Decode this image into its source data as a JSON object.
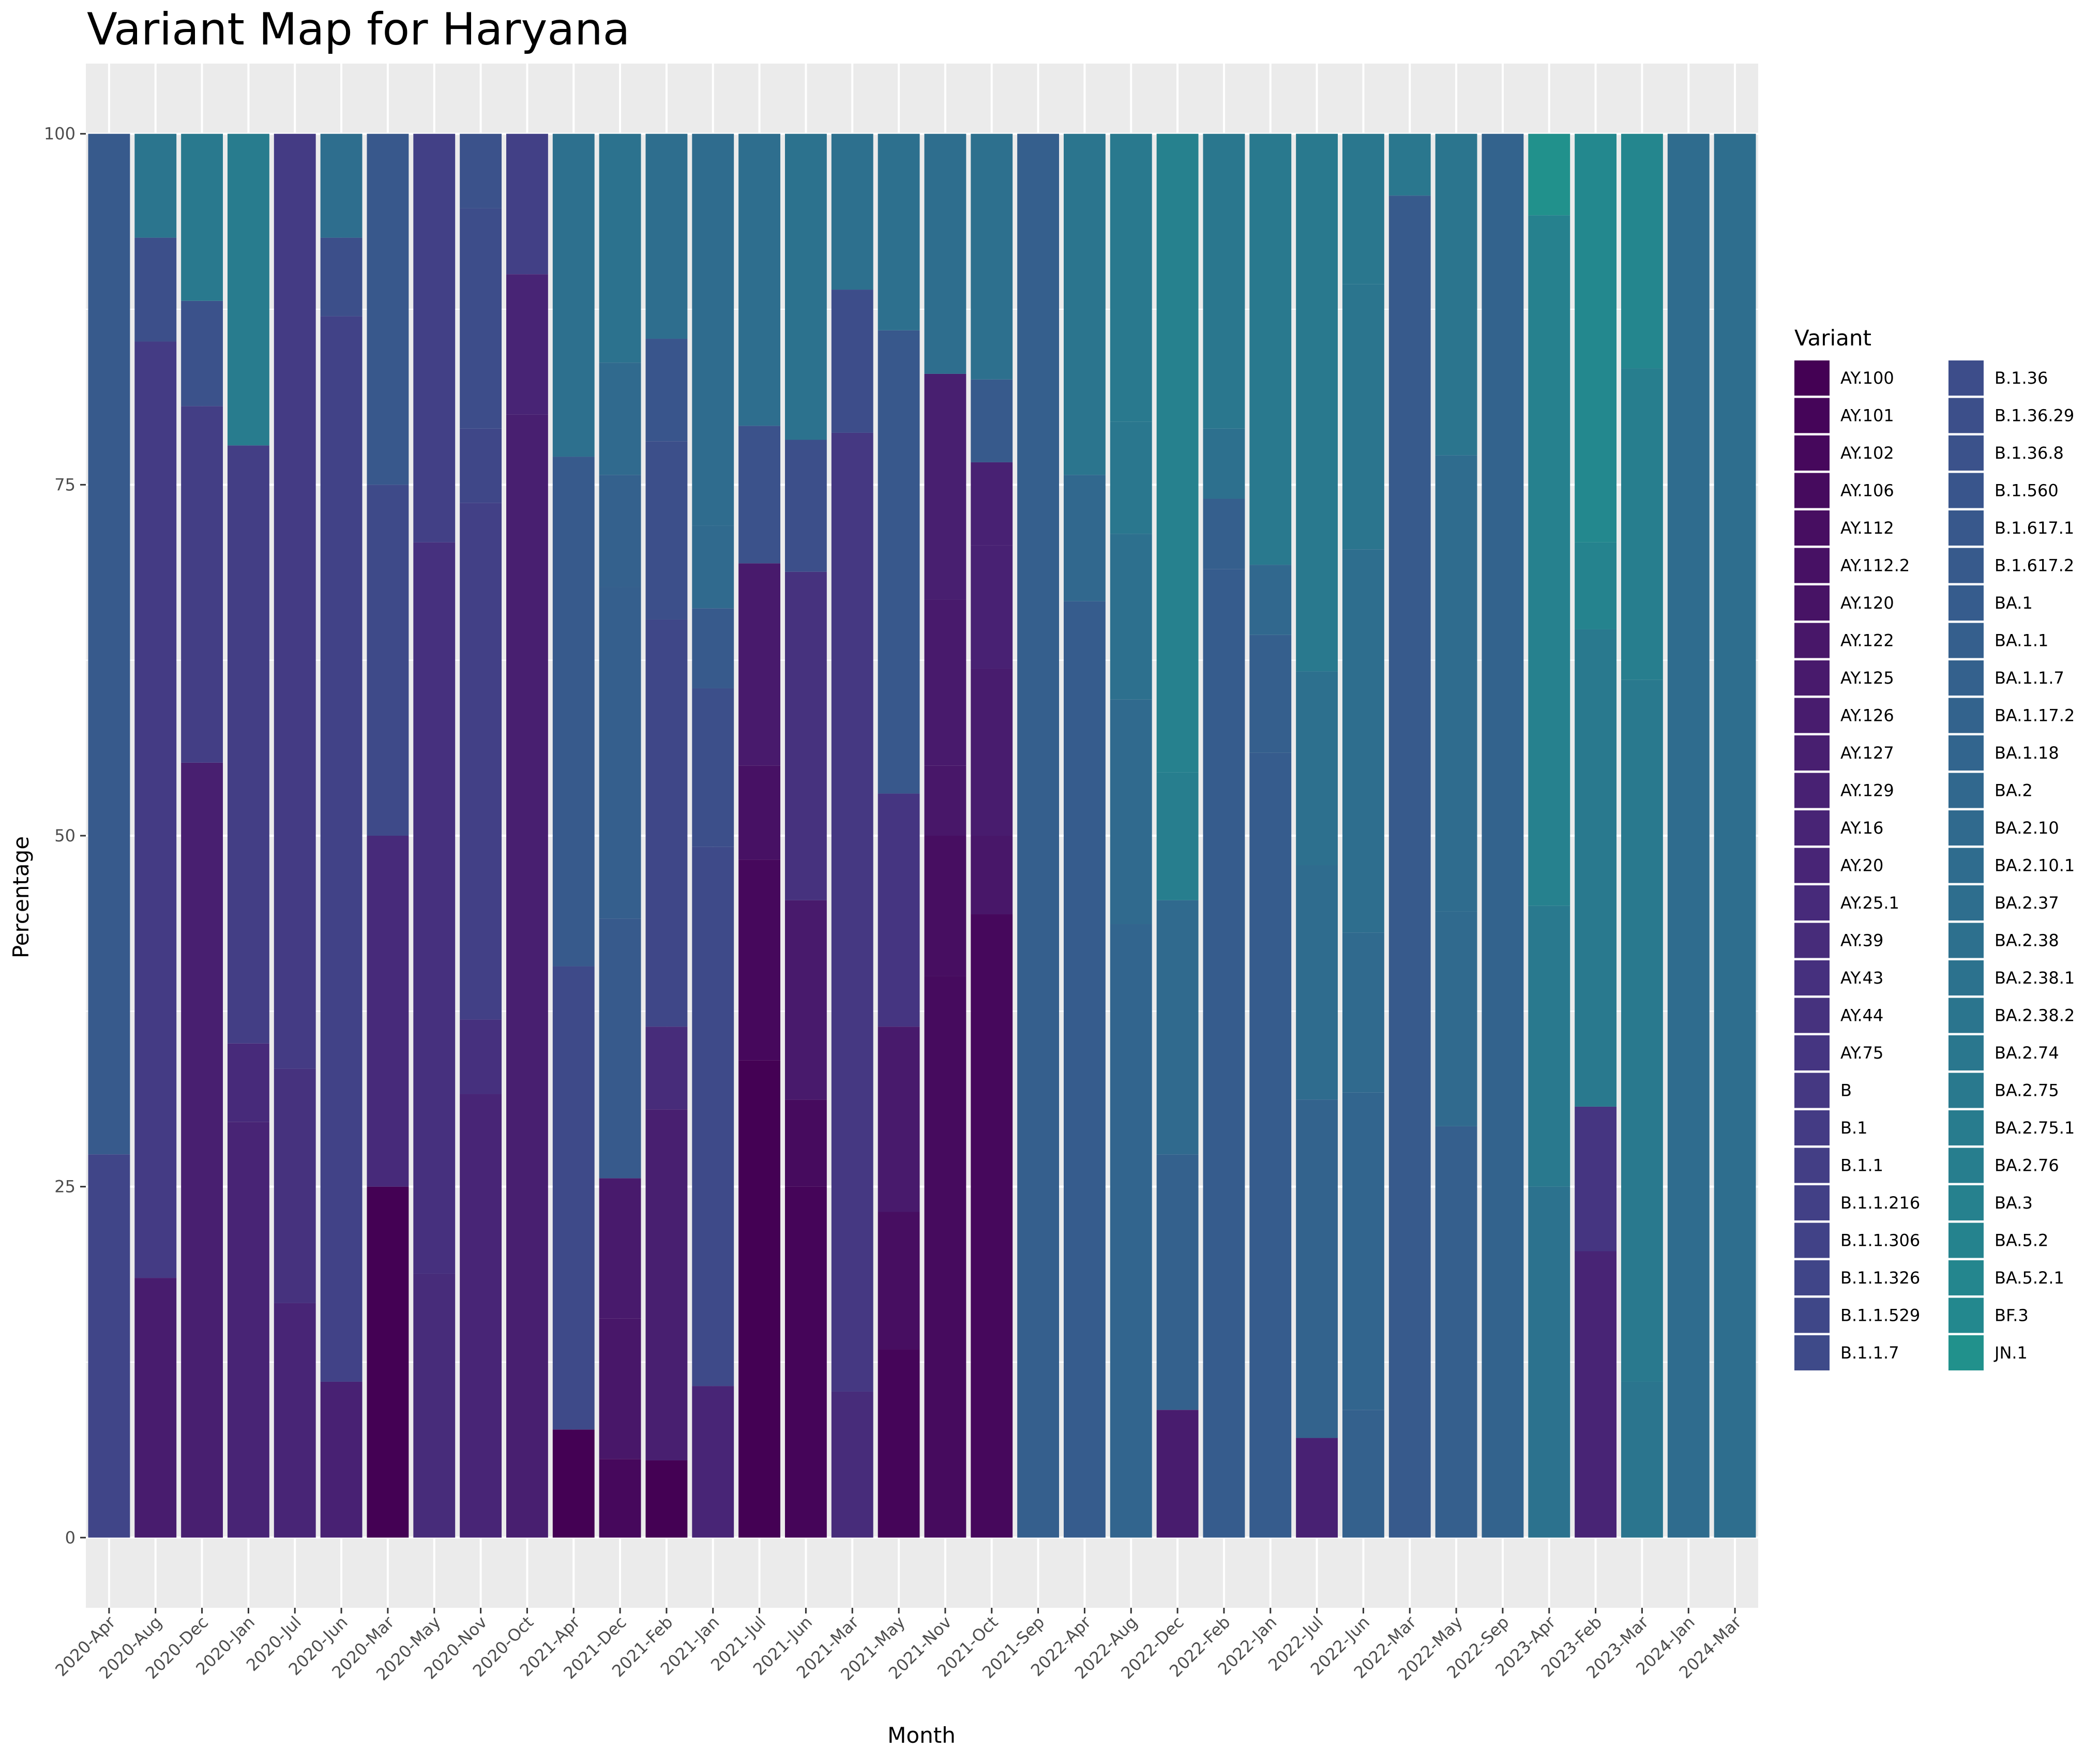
{
  "chart_data": {
    "type": "bar",
    "stacked": true,
    "title": "Variant Map for Haryana",
    "xlabel": "Month",
    "ylabel": "Percentage",
    "ylim": [
      -5,
      105
    ],
    "yticks": [
      0,
      25,
      50,
      75,
      100
    ],
    "grid": true,
    "legend_title": "Variant",
    "legend_position": "right",
    "categories": [
      "2020-Apr",
      "2020-Aug",
      "2020-Dec",
      "2020-Jan",
      "2020-Jul",
      "2020-Jun",
      "2020-Mar",
      "2020-May",
      "2020-Nov",
      "2020-Oct",
      "2021-Apr",
      "2021-Dec",
      "2021-Feb",
      "2021-Jan",
      "2021-Jul",
      "2021-Jun",
      "2021-Mar",
      "2021-May",
      "2021-Nov",
      "2021-Oct",
      "2021-Sep",
      "2022-Apr",
      "2022-Aug",
      "2022-Dec",
      "2022-Feb",
      "2022-Jan",
      "2022-Jul",
      "2022-Jun",
      "2022-Mar",
      "2022-May",
      "2022-Sep",
      "2023-Apr",
      "2023-Feb",
      "2023-Mar",
      "2024-Jan",
      "2024-Mar"
    ],
    "variants": [
      {
        "name": "AY.100",
        "color": "#440154"
      },
      {
        "name": "AY.101",
        "color": "#450559"
      },
      {
        "name": "AY.102",
        "color": "#46085c"
      },
      {
        "name": "AY.106",
        "color": "#460b5e"
      },
      {
        "name": "AY.112",
        "color": "#470e61"
      },
      {
        "name": "AY.112.2",
        "color": "#471164"
      },
      {
        "name": "AY.120",
        "color": "#471365"
      },
      {
        "name": "AY.122",
        "color": "#481769"
      },
      {
        "name": "AY.125",
        "color": "#481a6c"
      },
      {
        "name": "AY.126",
        "color": "#481c6e"
      },
      {
        "name": "AY.127",
        "color": "#481f70"
      },
      {
        "name": "AY.129",
        "color": "#482173"
      },
      {
        "name": "AY.16",
        "color": "#482475"
      },
      {
        "name": "AY.20",
        "color": "#482576"
      },
      {
        "name": "AY.25.1",
        "color": "#472a7a"
      },
      {
        "name": "AY.39",
        "color": "#472c7a"
      },
      {
        "name": "AY.43",
        "color": "#46307e"
      },
      {
        "name": "AY.44",
        "color": "#46327e"
      },
      {
        "name": "AY.75",
        "color": "#453581"
      },
      {
        "name": "B",
        "color": "#453882"
      },
      {
        "name": "B.1",
        "color": "#443b84"
      },
      {
        "name": "B.1.1",
        "color": "#433e85"
      },
      {
        "name": "B.1.1.216",
        "color": "#424086"
      },
      {
        "name": "B.1.1.306",
        "color": "#414287"
      },
      {
        "name": "B.1.1.326",
        "color": "#404588"
      },
      {
        "name": "B.1.1.529",
        "color": "#3f4788"
      },
      {
        "name": "B.1.1.7",
        "color": "#3e4a89"
      },
      {
        "name": "B.1.36",
        "color": "#3d4d8a"
      },
      {
        "name": "B.1.36.29",
        "color": "#3c4f8a"
      },
      {
        "name": "B.1.36.8",
        "color": "#3b528b"
      },
      {
        "name": "B.1.560",
        "color": "#39558c"
      },
      {
        "name": "B.1.617.1",
        "color": "#38588c"
      },
      {
        "name": "B.1.617.2",
        "color": "#375a8c"
      },
      {
        "name": "BA.1",
        "color": "#365c8d"
      },
      {
        "name": "BA.1.1",
        "color": "#355f8d"
      },
      {
        "name": "BA.1.1.7",
        "color": "#34618d"
      },
      {
        "name": "BA.1.17.2",
        "color": "#33638d"
      },
      {
        "name": "BA.1.18",
        "color": "#32658e"
      },
      {
        "name": "BA.2",
        "color": "#31688e"
      },
      {
        "name": "BA.2.10",
        "color": "#306a8e"
      },
      {
        "name": "BA.2.10.1",
        "color": "#2f6c8e"
      },
      {
        "name": "BA.2.37",
        "color": "#2e6e8e"
      },
      {
        "name": "BA.2.38",
        "color": "#2d708e"
      },
      {
        "name": "BA.2.38.1",
        "color": "#2c728e"
      },
      {
        "name": "BA.2.38.2",
        "color": "#2b758e"
      },
      {
        "name": "BA.2.74",
        "color": "#2a778e"
      },
      {
        "name": "BA.2.75",
        "color": "#29798e"
      },
      {
        "name": "BA.2.75.1",
        "color": "#287c8e"
      },
      {
        "name": "BA.2.76",
        "color": "#277e8e"
      },
      {
        "name": "BA.3",
        "color": "#26818e"
      },
      {
        "name": "BA.5.2",
        "color": "#25838e"
      },
      {
        "name": "BA.5.2.1",
        "color": "#24868e"
      },
      {
        "name": "BF.3",
        "color": "#23888e"
      },
      {
        "name": "JN.1",
        "color": "#21918c"
      }
    ],
    "series_note_visible": "",
    "bars": [
      {
        "month": "2020-Apr",
        "segments": [
          [
            "B.1.1.326",
            27.3
          ],
          [
            "B.1.617.2",
            72.7
          ]
        ]
      },
      {
        "month": "2020-Aug",
        "segments": [
          [
            "AY.126",
            18.5
          ],
          [
            "B.1",
            66.7
          ],
          [
            "B.1.36.29",
            7.4
          ],
          [
            "BA.2.38.2",
            7.4
          ]
        ]
      },
      {
        "month": "2020-Dec",
        "segments": [
          [
            "AY.127",
            55.2
          ],
          [
            "B.1.1",
            25.4
          ],
          [
            "B.1.36.8",
            7.5
          ],
          [
            "BA.2.75",
            11.9
          ]
        ]
      },
      {
        "month": "2020-Jan",
        "segments": [
          [
            "AY.16",
            29.6
          ],
          [
            "AY.25.1",
            5.6
          ],
          [
            "B.1.1",
            42.6
          ],
          [
            "BA.2.75.1",
            22.2
          ]
        ]
      },
      {
        "month": "2020-Jul",
        "segments": [
          [
            "AY.20",
            16.7
          ],
          [
            "AY.44",
            16.7
          ],
          [
            "B.1",
            66.6
          ]
        ]
      },
      {
        "month": "2020-Jun",
        "segments": [
          [
            "AY.129",
            11.1
          ],
          [
            "B.1.1.306",
            75.9
          ],
          [
            "B.1.36.29",
            5.6
          ],
          [
            "BA.2.37",
            7.4
          ]
        ]
      },
      {
        "month": "2020-Mar",
        "segments": [
          [
            "AY.100",
            25
          ],
          [
            "AY.25.1",
            25
          ],
          [
            "B.1.1.7",
            25
          ],
          [
            "B.1.617.1",
            25
          ]
        ]
      },
      {
        "month": "2020-May",
        "segments": [
          [
            "AY.39",
            18.8
          ],
          [
            "AY.43",
            52.1
          ],
          [
            "B.1.1.216",
            29.1
          ]
        ]
      },
      {
        "month": "2020-Nov",
        "segments": [
          [
            "AY.20",
            31.6
          ],
          [
            "AY.43",
            5.3
          ],
          [
            "B.1.1.216",
            36.8
          ],
          [
            "B.1.1.529",
            5.3
          ],
          [
            "B.1.36",
            15.7
          ],
          [
            "B.1.36.8",
            5.3
          ]
        ]
      },
      {
        "month": "2020-Oct",
        "segments": [
          [
            "AY.127",
            80
          ],
          [
            "AY.16",
            10
          ],
          [
            "B.1.1.216",
            10
          ]
        ]
      },
      {
        "month": "2021-Apr",
        "segments": [
          [
            "AY.100",
            7.7
          ],
          [
            "B.1.1.7",
            33
          ],
          [
            "B.1.617.2",
            36.3
          ],
          [
            "BA.2.38",
            23
          ]
        ]
      },
      {
        "month": "2021-Dec",
        "segments": [
          [
            "AY.102",
            5.6
          ],
          [
            "AY.122",
            10
          ],
          [
            "AY.125",
            10
          ],
          [
            "B.1.617.2",
            18.5
          ],
          [
            "BA.1.1",
            23.6
          ],
          [
            "BA.1.1.7",
            8
          ],
          [
            "BA.2.10",
            8
          ],
          [
            "BA.2.38.1",
            16.3
          ]
        ]
      },
      {
        "month": "2021-Feb",
        "segments": [
          [
            "AY.100",
            5.5
          ],
          [
            "AY.127",
            25
          ],
          [
            "AY.39",
            5.9
          ],
          [
            "B.1.1.529",
            29
          ],
          [
            "B.1.36.29",
            12.7
          ],
          [
            "B.1.560",
            7.3
          ],
          [
            "BA.2.37",
            14.6
          ]
        ]
      },
      {
        "month": "2021-Jan",
        "segments": [
          [
            "AY.20",
            10.8
          ],
          [
            "B.1.1.7",
            38.4
          ],
          [
            "B.1.36.29",
            11.3
          ],
          [
            "B.1.617.2",
            5.7
          ],
          [
            "BA.2.10",
            5.9
          ],
          [
            "BA.2.10.1",
            27.9
          ]
        ]
      },
      {
        "month": "2021-Jul",
        "segments": [
          [
            "AY.100",
            34
          ],
          [
            "AY.102",
            14.3
          ],
          [
            "AY.112.2",
            6.7
          ],
          [
            "AY.125",
            14.4
          ],
          [
            "B.1.36.8",
            9.8
          ],
          [
            "BA.2.37",
            20.8
          ]
        ]
      },
      {
        "month": "2021-Jun",
        "segments": [
          [
            "AY.101",
            25
          ],
          [
            "AY.106",
            6.2
          ],
          [
            "AY.125",
            14.2
          ],
          [
            "AY.44",
            23.4
          ],
          [
            "B.1.36.29",
            9.4
          ],
          [
            "BA.2.38.1",
            21.8
          ]
        ]
      },
      {
        "month": "2021-Mar",
        "segments": [
          [
            "AY.39",
            10.4
          ],
          [
            "B",
            68.3
          ],
          [
            "B.1.36",
            10.2
          ],
          [
            "BA.2.38",
            11.1
          ]
        ]
      },
      {
        "month": "2021-May",
        "segments": [
          [
            "AY.101",
            13.4
          ],
          [
            "AY.112",
            9.8
          ],
          [
            "AY.125",
            13.2
          ],
          [
            "AY.75",
            16.6
          ],
          [
            "B.1.617.1",
            33
          ],
          [
            "BA.2.38",
            14
          ]
        ]
      },
      {
        "month": "2021-Nov",
        "segments": [
          [
            "AY.106",
            40
          ],
          [
            "AY.112",
            10
          ],
          [
            "AY.122",
            5
          ],
          [
            "AY.125",
            11.8
          ],
          [
            "AY.127",
            16.1
          ],
          [
            "BA.2.37",
            17.1
          ]
        ]
      },
      {
        "month": "2021-Oct",
        "segments": [
          [
            "AY.102",
            44.4
          ],
          [
            "AY.122",
            5.6
          ],
          [
            "AY.126",
            11.9
          ],
          [
            "AY.129",
            8.8
          ],
          [
            "AY.129",
            5.9
          ],
          [
            "B.1.617.2",
            5.9
          ],
          [
            "BA.2.38",
            17.5
          ]
        ]
      },
      {
        "month": "2021-Sep",
        "segments": [
          [
            "BA.1.1",
            100
          ]
        ]
      },
      {
        "month": "2022-Apr",
        "segments": [
          [
            "BA.1",
            66.7
          ],
          [
            "BA.2",
            9
          ],
          [
            "BA.2.38.2",
            24.3
          ]
        ]
      },
      {
        "month": "2022-Aug",
        "segments": [
          [
            "BA.1.18",
            43.7
          ],
          [
            "BA.2.10",
            16
          ],
          [
            "BA.2.38",
            11.8
          ],
          [
            "BA.2.74",
            8
          ],
          [
            "BA.2.75",
            20.5
          ]
        ]
      },
      {
        "month": "2022-Dec",
        "segments": [
          [
            "AY.126",
            9.1
          ],
          [
            "BA.1.1.7",
            18.2
          ],
          [
            "BA.2.10",
            18.1
          ],
          [
            "BA.2.76",
            9.1
          ],
          [
            "BA.3",
            45.5
          ]
        ]
      },
      {
        "month": "2022-Feb",
        "segments": [
          [
            "BA.1",
            69
          ],
          [
            "BA.1.1",
            5
          ],
          [
            "BA.2.38",
            5
          ],
          [
            "BA.2.74",
            21
          ]
        ]
      },
      {
        "month": "2022-Jan",
        "segments": [
          [
            "BA.1",
            55.9
          ],
          [
            "BA.1.1",
            8.4
          ],
          [
            "BA.2",
            5
          ],
          [
            "BA.2.75",
            30.7
          ]
        ]
      },
      {
        "month": "2022-Jul",
        "segments": [
          [
            "AY.129",
            7.1
          ],
          [
            "BA.1.17.2",
            24.1
          ],
          [
            "BA.2.10.1",
            16.7
          ],
          [
            "BA.2.38",
            13.8
          ],
          [
            "BA.2.75",
            38.3
          ]
        ]
      },
      {
        "month": "2022-Jun",
        "segments": [
          [
            "BA.1.1.7",
            9.1
          ],
          [
            "BA.1.18",
            22.6
          ],
          [
            "BA.2.10",
            11.4
          ],
          [
            "BA.2.37",
            27.3
          ],
          [
            "BA.2.38.2",
            18.9
          ],
          [
            "BA.2.74",
            10.7
          ]
        ]
      },
      {
        "month": "2022-Mar",
        "segments": [
          [
            "B.1.617.2",
            95.6
          ],
          [
            "BA.2.74",
            4.4
          ]
        ]
      },
      {
        "month": "2022-May",
        "segments": [
          [
            "BA.1.1",
            29.3
          ],
          [
            "BA.2.10",
            15.3
          ],
          [
            "BA.2.10.1",
            32.5
          ],
          [
            "BA.2.38.2",
            22.9
          ]
        ]
      },
      {
        "month": "2022-Sep",
        "segments": [
          [
            "BA.1.17.2",
            100
          ]
        ]
      },
      {
        "month": "2023-Apr",
        "segments": [
          [
            "BA.2.38.1",
            25
          ],
          [
            "BA.2.75",
            20
          ],
          [
            "BA.3",
            49.2
          ],
          [
            "JN.1",
            5.8
          ]
        ]
      },
      {
        "month": "2023-Feb",
        "segments": [
          [
            "AY.16",
            20.4
          ],
          [
            "AY.75",
            10.3
          ],
          [
            "BA.2.75",
            34
          ],
          [
            "BA.5.2",
            6.2
          ],
          [
            "BF.3",
            29.1
          ]
        ]
      },
      {
        "month": "2023-Mar",
        "segments": [
          [
            "BA.2.38.2",
            11.1
          ],
          [
            "BA.2.75",
            50
          ],
          [
            "BA.2.76",
            22.2
          ],
          [
            "BA.5.2.1",
            16.7
          ]
        ]
      },
      {
        "month": "2024-Jan",
        "segments": [
          [
            "BA.2.10.1",
            100
          ]
        ]
      },
      {
        "month": "2024-Mar",
        "segments": [
          [
            "BA.2.37",
            100
          ]
        ]
      }
    ]
  }
}
